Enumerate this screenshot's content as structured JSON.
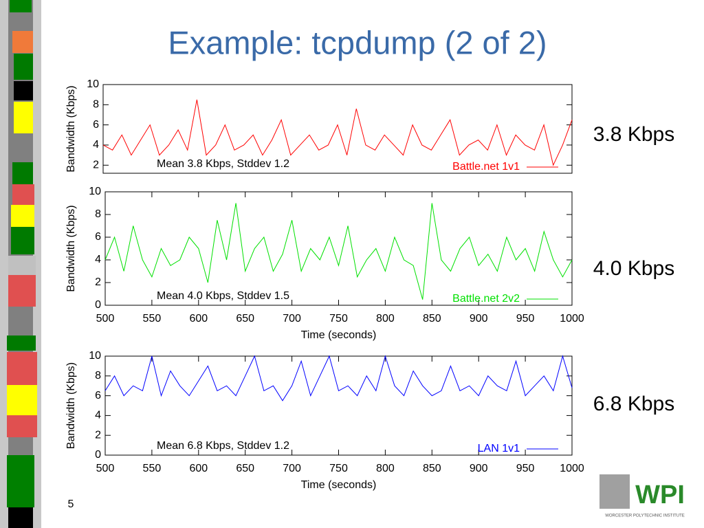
{
  "slide": {
    "title": "Example: tcpdump (2 of 2)",
    "page_number": "5",
    "side_labels": [
      "3.8 Kbps",
      "4.0 Kbps",
      "6.8 Kbps"
    ],
    "logo": "WPI",
    "logo_caption": "WORCESTER POLYTECHNIC INSTITUTE"
  },
  "chart_data": [
    {
      "type": "line",
      "ylabel": "Bandwidth (Kbps)",
      "annotation": "Mean 3.8 Kbps, Stddev 1.2",
      "ylim": [
        1.2,
        10
      ],
      "yticks": [
        2,
        4,
        6,
        8,
        10
      ],
      "xlim": [
        500,
        1000
      ],
      "x": [
        500,
        510,
        520,
        530,
        540,
        550,
        560,
        570,
        580,
        590,
        600,
        610,
        620,
        630,
        640,
        650,
        660,
        670,
        680,
        690,
        700,
        710,
        720,
        730,
        740,
        750,
        760,
        770,
        780,
        790,
        800,
        810,
        820,
        830,
        840,
        850,
        860,
        870,
        880,
        890,
        900,
        910,
        920,
        930,
        940,
        950,
        960,
        970,
        980,
        990,
        1000
      ],
      "series": [
        {
          "name": "Battle.net 1v1",
          "color": "#ff0000",
          "values": [
            4,
            3.5,
            5,
            3,
            4.5,
            6,
            3,
            4,
            5.5,
            3.5,
            8.5,
            3,
            4,
            6,
            3.5,
            4,
            5,
            3,
            4.5,
            6.5,
            3,
            4,
            5,
            3.5,
            4,
            6,
            3,
            7.6,
            4,
            3.5,
            5,
            4,
            3,
            6,
            4,
            3.5,
            5,
            6.5,
            3,
            4,
            4.5,
            3.5,
            6,
            3,
            5,
            4,
            3.5,
            6,
            2,
            4,
            6.5
          ]
        }
      ]
    },
    {
      "type": "line",
      "ylabel": "Bandwidth (Kbps)",
      "xlabel": "Time (seconds)",
      "annotation": "Mean 4.0 Kbps, Stddev 1.5",
      "ylim": [
        0,
        10
      ],
      "yticks": [
        0,
        2,
        4,
        6,
        8,
        10
      ],
      "xlim": [
        500,
        1000
      ],
      "xticks": [
        500,
        550,
        600,
        650,
        700,
        750,
        800,
        850,
        900,
        950,
        1000
      ],
      "x": [
        500,
        510,
        520,
        530,
        540,
        550,
        560,
        570,
        580,
        590,
        600,
        610,
        620,
        630,
        640,
        650,
        660,
        670,
        680,
        690,
        700,
        710,
        720,
        730,
        740,
        750,
        760,
        770,
        780,
        790,
        800,
        810,
        820,
        830,
        840,
        850,
        860,
        870,
        880,
        890,
        900,
        910,
        920,
        930,
        940,
        950,
        960,
        970,
        980,
        990,
        1000
      ],
      "series": [
        {
          "name": "Battle.net 2v2",
          "color": "#00e000",
          "values": [
            4,
            6,
            3,
            7,
            4,
            2.5,
            5,
            3.5,
            4,
            6,
            5,
            2,
            7.5,
            4,
            9,
            3,
            5,
            6,
            3,
            4.5,
            7.5,
            3,
            5,
            4,
            6,
            3.5,
            7,
            2.5,
            4,
            5,
            3,
            6,
            4,
            3.5,
            0.5,
            9,
            4,
            3,
            5,
            6,
            3.5,
            4.5,
            3,
            6,
            4,
            5,
            3,
            6.5,
            4,
            2.5,
            4
          ]
        }
      ]
    },
    {
      "type": "line",
      "ylabel": "Bandwidth (Kbps)",
      "xlabel": "Time (seconds)",
      "annotation": "Mean 6.8 Kbps, Stddev 1.2",
      "ylim": [
        0,
        10
      ],
      "yticks": [
        0,
        2,
        4,
        6,
        8,
        10
      ],
      "xlim": [
        500,
        1000
      ],
      "xticks": [
        500,
        550,
        600,
        650,
        700,
        750,
        800,
        850,
        900,
        950,
        1000
      ],
      "x": [
        500,
        510,
        520,
        530,
        540,
        550,
        560,
        570,
        580,
        590,
        600,
        610,
        620,
        630,
        640,
        650,
        660,
        670,
        680,
        690,
        700,
        710,
        720,
        730,
        740,
        750,
        760,
        770,
        780,
        790,
        800,
        810,
        820,
        830,
        840,
        850,
        860,
        870,
        880,
        890,
        900,
        910,
        920,
        930,
        940,
        950,
        960,
        970,
        980,
        990,
        1000
      ],
      "series": [
        {
          "name": "LAN 1v1",
          "color": "#0000ff",
          "values": [
            6.5,
            8,
            6,
            7,
            6.5,
            10,
            6,
            8.5,
            7,
            6,
            7.5,
            9,
            6.5,
            7,
            6,
            8,
            10,
            6.5,
            7,
            5.5,
            7,
            9.5,
            6,
            8,
            10,
            6.5,
            7,
            6,
            8,
            6.5,
            10,
            7,
            6,
            8.5,
            7,
            6,
            6.5,
            9,
            6.5,
            7,
            6,
            8,
            7,
            6.5,
            9.5,
            6,
            7,
            8,
            6.5,
            10,
            6.8
          ]
        }
      ]
    }
  ]
}
